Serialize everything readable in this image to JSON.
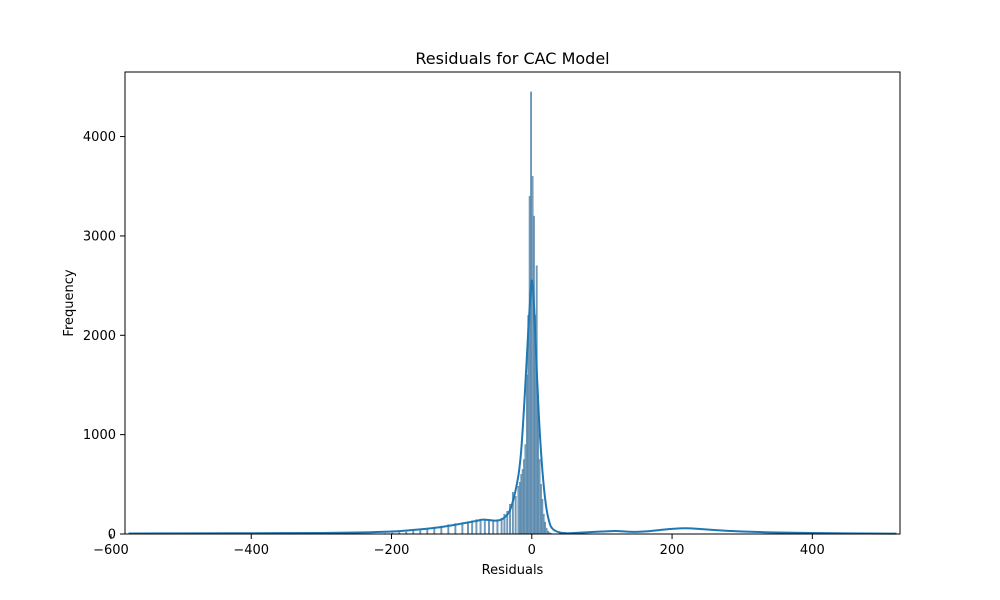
{
  "chart_data": {
    "type": "bar",
    "title": "Residuals for CAC Model",
    "xlabel": "Residuals",
    "ylabel": "Frequency",
    "xlim": [
      -580,
      525
    ],
    "ylim": [
      0,
      4650
    ],
    "xticks": [
      -600,
      -400,
      -200,
      0,
      200,
      400
    ],
    "xtick_labels": [
      "−600",
      "−400",
      "−200",
      "0",
      "200",
      "400"
    ],
    "yticks": [
      0,
      1000,
      2000,
      3000,
      4000
    ],
    "ytick_labels": [
      "0",
      "1000",
      "2000",
      "3000",
      "4000"
    ],
    "grid": false,
    "colors": {
      "bars": "#4c7fa5",
      "kde": "#1f77b4"
    },
    "histogram": {
      "bin_width": 2,
      "bins": [
        [
          -210,
          5
        ],
        [
          -200,
          10
        ],
        [
          -190,
          15
        ],
        [
          -180,
          20
        ],
        [
          -170,
          30
        ],
        [
          -160,
          40
        ],
        [
          -150,
          55
        ],
        [
          -140,
          70
        ],
        [
          -130,
          80
        ],
        [
          -120,
          95
        ],
        [
          -110,
          105
        ],
        [
          -100,
          115
        ],
        [
          -92,
          125
        ],
        [
          -86,
          135
        ],
        [
          -80,
          145
        ],
        [
          -74,
          150
        ],
        [
          -68,
          150
        ],
        [
          -62,
          145
        ],
        [
          -56,
          140
        ],
        [
          -50,
          145
        ],
        [
          -44,
          160
        ],
        [
          -40,
          200
        ],
        [
          -36,
          230
        ],
        [
          -32,
          300
        ],
        [
          -28,
          420
        ],
        [
          -24,
          380
        ],
        [
          -20,
          480
        ],
        [
          -18,
          520
        ],
        [
          -16,
          600
        ],
        [
          -14,
          650
        ],
        [
          -12,
          750
        ],
        [
          -10,
          900
        ],
        [
          -8,
          1600
        ],
        [
          -6,
          2200
        ],
        [
          -4,
          3400
        ],
        [
          -2,
          4450
        ],
        [
          0,
          3600
        ],
        [
          2,
          3200
        ],
        [
          4,
          2200
        ],
        [
          6,
          2700
        ],
        [
          8,
          1400
        ],
        [
          10,
          750
        ],
        [
          12,
          500
        ],
        [
          14,
          350
        ],
        [
          16,
          200
        ],
        [
          18,
          120
        ],
        [
          20,
          60
        ],
        [
          22,
          30
        ],
        [
          24,
          15
        ],
        [
          26,
          8
        ]
      ]
    },
    "kde": {
      "x": [
        -575,
        -500,
        -400,
        -300,
        -250,
        -200,
        -170,
        -140,
        -120,
        -100,
        -80,
        -70,
        -60,
        -50,
        -40,
        -30,
        -20,
        -15,
        -10,
        -5,
        -2,
        0,
        2,
        5,
        10,
        15,
        20,
        25,
        30,
        40,
        50,
        60,
        80,
        100,
        120,
        140,
        160,
        180,
        200,
        220,
        240,
        260,
        280,
        300,
        350,
        400,
        450,
        520
      ],
      "y": [
        5,
        6,
        8,
        10,
        15,
        25,
        40,
        60,
        80,
        105,
        130,
        145,
        140,
        135,
        160,
        260,
        550,
        850,
        1400,
        2050,
        2400,
        2550,
        2450,
        2000,
        1200,
        650,
        300,
        120,
        50,
        15,
        8,
        10,
        18,
        25,
        30,
        22,
        25,
        38,
        52,
        58,
        50,
        40,
        32,
        25,
        15,
        10,
        6,
        4
      ]
    }
  }
}
